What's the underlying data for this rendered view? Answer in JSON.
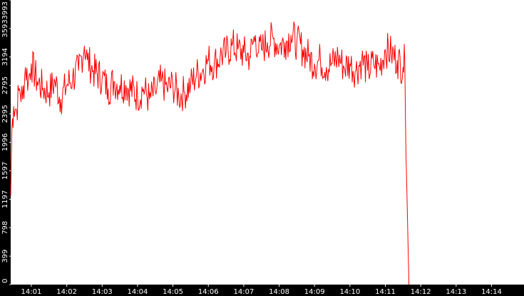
{
  "chart_data": {
    "type": "line",
    "title": "",
    "xlabel": "",
    "ylabel": "",
    "grid": false,
    "legend": "none",
    "colors": {
      "line": "#ff0000",
      "axis_bg": "#000000",
      "tick_text": "#ffffff",
      "plot_bg": "#ffffff"
    },
    "y_ticks": [
      "0",
      "399",
      "798",
      "1197",
      "1597",
      "1996",
      "2395",
      "2795",
      "3194",
      "3593",
      "3993"
    ],
    "x_ticks": [
      "14:01",
      "14:02",
      "14:03",
      "14:04",
      "14:05",
      "14:06",
      "14:07",
      "14:08",
      "14:09",
      "14:10",
      "14:11",
      "14:12",
      "14:13",
      "14:14"
    ],
    "ylim": [
      0,
      3993
    ],
    "xlim": [
      "14:00:25",
      "14:14:55"
    ],
    "series": [
      {
        "points": [
          [
            "14:00:25",
            1250
          ],
          [
            "14:00:27",
            2200
          ],
          [
            "14:00:30",
            2500
          ],
          [
            "14:00:35",
            2450
          ],
          [
            "14:00:40",
            2750
          ],
          [
            "14:00:45",
            2600
          ],
          [
            "14:00:50",
            3050
          ],
          [
            "14:00:55",
            2850
          ],
          [
            "14:01:00",
            3100
          ],
          [
            "14:01:10",
            2850
          ],
          [
            "14:01:20",
            2750
          ],
          [
            "14:01:30",
            2700
          ],
          [
            "14:01:40",
            2850
          ],
          [
            "14:01:50",
            2600
          ],
          [
            "14:02:00",
            2800
          ],
          [
            "14:02:10",
            2900
          ],
          [
            "14:02:20",
            3000
          ],
          [
            "14:02:30",
            3350
          ],
          [
            "14:02:35",
            3150
          ],
          [
            "14:02:45",
            3000
          ],
          [
            "14:03:00",
            2900
          ],
          [
            "14:03:10",
            2750
          ],
          [
            "14:03:20",
            2850
          ],
          [
            "14:03:30",
            2800
          ],
          [
            "14:03:40",
            2800
          ],
          [
            "14:04:00",
            2650
          ],
          [
            "14:04:10",
            2750
          ],
          [
            "14:04:20",
            2600
          ],
          [
            "14:04:30",
            2700
          ],
          [
            "14:04:40",
            2850
          ],
          [
            "14:04:50",
            2750
          ],
          [
            "14:05:00",
            2800
          ],
          [
            "14:05:10",
            2650
          ],
          [
            "14:05:20",
            2700
          ],
          [
            "14:05:30",
            2800
          ],
          [
            "14:05:40",
            2950
          ],
          [
            "14:05:50",
            3000
          ],
          [
            "14:06:00",
            3150
          ],
          [
            "14:06:10",
            3100
          ],
          [
            "14:06:20",
            3200
          ],
          [
            "14:06:30",
            3250
          ],
          [
            "14:06:40",
            3350
          ],
          [
            "14:06:50",
            3300
          ],
          [
            "14:07:00",
            3250
          ],
          [
            "14:07:10",
            3200
          ],
          [
            "14:07:20",
            3500
          ],
          [
            "14:07:25",
            3250
          ],
          [
            "14:07:30",
            3300
          ],
          [
            "14:07:40",
            3400
          ],
          [
            "14:07:50",
            3450
          ],
          [
            "14:08:00",
            3350
          ],
          [
            "14:08:10",
            3400
          ],
          [
            "14:08:20",
            3500
          ],
          [
            "14:08:30",
            3400
          ],
          [
            "14:08:40",
            3300
          ],
          [
            "14:08:50",
            3200
          ],
          [
            "14:09:00",
            3100
          ],
          [
            "14:09:10",
            3150
          ],
          [
            "14:09:20",
            3050
          ],
          [
            "14:09:30",
            3100
          ],
          [
            "14:09:40",
            3200
          ],
          [
            "14:09:50",
            3050
          ],
          [
            "14:10:00",
            3100
          ],
          [
            "14:10:10",
            3000
          ],
          [
            "14:10:20",
            3150
          ],
          [
            "14:10:30",
            3000
          ],
          [
            "14:10:40",
            3100
          ],
          [
            "14:10:50",
            3050
          ],
          [
            "14:11:00",
            3300
          ],
          [
            "14:11:10",
            3250
          ],
          [
            "14:11:20",
            3150
          ],
          [
            "14:11:30",
            3050
          ],
          [
            "14:11:33",
            3150
          ],
          [
            "14:11:36",
            1500
          ],
          [
            "14:11:40",
            0
          ]
        ]
      }
    ]
  }
}
